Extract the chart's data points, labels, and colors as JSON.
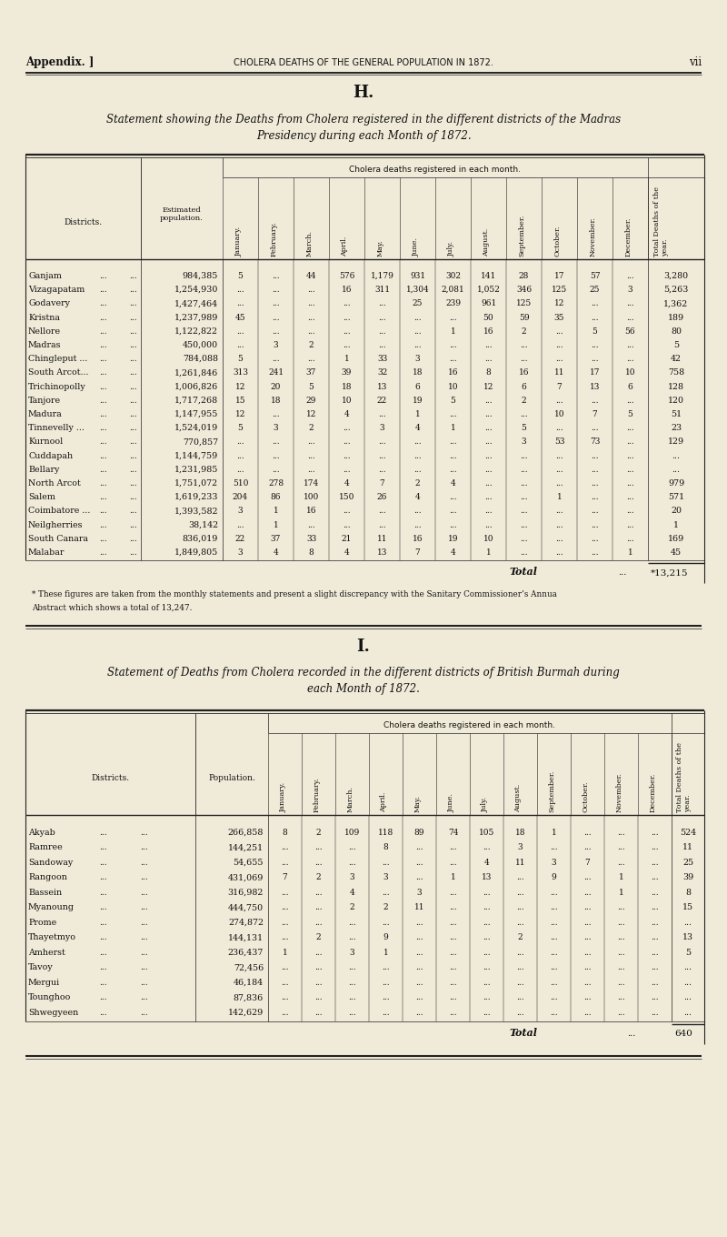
{
  "bg_color": "#f0ead8",
  "text_color": "#111111",
  "page_header_left": "Appendix. ]",
  "page_header_center": "CHOLERA DEATHS OF THE GENERAL POPULATION IN 1872.",
  "page_number": "vii",
  "section_h": "H.",
  "title_h_line1": "Statement showing the Deaths from Cholera registered in the different districts of the Madras",
  "title_h_line2": "Presidency during each Month of 1872.",
  "section_i": "I.",
  "title_i_line1": "Statement of Deaths from Cholera recorded in the different districts of British Burmah during",
  "title_i_line2": "each Month of 1872.",
  "footnote_line1": "* These figures are taken from the monthly statements and present a slight discrepancy with the Sanitary Commissioner’s Annua",
  "footnote_line2": "Abstract which shows a total of 13,247.",
  "table_h_col1_label": "Districts.",
  "table_h_col2_label": "Estimated\npopulation.",
  "table_h_subheader": "Cholera deaths registered in each month.",
  "table_h_months": [
    "January.",
    "February.",
    "March.",
    "April.",
    "May.",
    "June.",
    "July.",
    "August.",
    "September.",
    "October.",
    "November.",
    "December."
  ],
  "table_h_total_col": "Total Deaths of the\nyear.",
  "table_h_rows": [
    [
      "Ganjam",
      "...",
      "...",
      "984,385",
      "5",
      "...",
      "44",
      "576",
      "1,179",
      "931",
      "302",
      "141",
      "28",
      "17",
      "57",
      "...",
      "3,280"
    ],
    [
      "Vizagapatam",
      "...",
      "...",
      "1,254,930",
      "...",
      "...",
      "...",
      "16",
      "311",
      "1,304",
      "2,081",
      "1,052",
      "346",
      "125",
      "25",
      "3",
      "5,263"
    ],
    [
      "Godavery",
      "...",
      "...",
      "1,427,464",
      "...",
      "...",
      "...",
      "...",
      "...",
      "25",
      "239",
      "961",
      "125",
      "12",
      "...",
      "...",
      "1,362"
    ],
    [
      "Kristna",
      "...",
      "...",
      "1,237,989",
      "45",
      "...",
      "...",
      "...",
      "...",
      "...",
      "...",
      "50",
      "59",
      "35",
      "...",
      "...",
      "189"
    ],
    [
      "Nellore",
      "...",
      "...",
      "1,122,822",
      "...",
      "...",
      "...",
      "...",
      "...",
      "...",
      "1",
      "16",
      "2",
      "...",
      "5",
      "56",
      "80"
    ],
    [
      "Madras",
      "...",
      "...",
      "450,000",
      "...",
      "3",
      "2",
      "...",
      "...",
      "...",
      "...",
      "...",
      "...",
      "...",
      "...",
      "...",
      "5"
    ],
    [
      "Chingleput ...",
      "...",
      "...",
      "784,088",
      "5",
      "...",
      "...",
      "1",
      "33",
      "3",
      "...",
      "...",
      "...",
      "...",
      "...",
      "...",
      "42"
    ],
    [
      "South Arcot...",
      "...",
      "...",
      "1,261,846",
      "313",
      "241",
      "37",
      "39",
      "32",
      "18",
      "16",
      "8",
      "16",
      "11",
      "17",
      "10",
      "758"
    ],
    [
      "Trichinopolly",
      "...",
      "...",
      "1,006,826",
      "12",
      "20",
      "5",
      "18",
      "13",
      "6",
      "10",
      "12",
      "6",
      "7",
      "13",
      "6",
      "128"
    ],
    [
      "Tanjore",
      "...",
      "...",
      "1,717,268",
      "15",
      "18",
      "29",
      "10",
      "22",
      "19",
      "5",
      "...",
      "2",
      "...",
      "...",
      "...",
      "120"
    ],
    [
      "Madura",
      "...",
      "...",
      "1,147,955",
      "12",
      "...",
      "12",
      "4",
      "...",
      "1",
      "...",
      "...",
      "...",
      "10",
      "7",
      "5",
      "51"
    ],
    [
      "Tinnevelly ...",
      "...",
      "...",
      "1,524,019",
      "5",
      "3",
      "2",
      "...",
      "3",
      "4",
      "1",
      "...",
      "5",
      "...",
      "...",
      "...",
      "23"
    ],
    [
      "Kurnool",
      "...",
      "...",
      "770,857",
      "...",
      "...",
      "...",
      "...",
      "...",
      "...",
      "...",
      "...",
      "3",
      "53",
      "73",
      "...",
      "129"
    ],
    [
      "Cuddapah",
      "...",
      "...",
      "1,144,759",
      "...",
      "...",
      "...",
      "...",
      "...",
      "...",
      "...",
      "...",
      "...",
      "...",
      "...",
      "...",
      "..."
    ],
    [
      "Bellary",
      "...",
      "...",
      "1,231,985",
      "...",
      "...",
      "...",
      "...",
      "...",
      "...",
      "...",
      "...",
      "...",
      "...",
      "...",
      "...",
      "..."
    ],
    [
      "North Arcot",
      "...",
      "...",
      "1,751,072",
      "510",
      "278",
      "174",
      "4",
      "7",
      "2",
      "4",
      "...",
      "...",
      "...",
      "...",
      "...",
      "979"
    ],
    [
      "Salem",
      "...",
      "...",
      "1,619,233",
      "204",
      "86",
      "100",
      "150",
      "26",
      "4",
      "...",
      "...",
      "...",
      "1",
      "...",
      "...",
      "571"
    ],
    [
      "Coimbatore ...",
      "...",
      "...",
      "1,393,582",
      "3",
      "1",
      "16",
      "...",
      "...",
      "...",
      "...",
      "...",
      "...",
      "...",
      "...",
      "...",
      "20"
    ],
    [
      "Neilgherries",
      "...",
      "...",
      "38,142",
      "...",
      "1",
      "...",
      "...",
      "...",
      "...",
      "...",
      "...",
      "...",
      "...",
      "...",
      "...",
      "1"
    ],
    [
      "South Canara",
      "...",
      "...",
      "836,019",
      "22",
      "37",
      "33",
      "21",
      "11",
      "16",
      "19",
      "10",
      "...",
      "...",
      "...",
      "...",
      "169"
    ],
    [
      "Malabar",
      "...",
      "...",
      "1,849,805",
      "3",
      "4",
      "8",
      "4",
      "13",
      "7",
      "4",
      "1",
      "...",
      "...",
      "...",
      "1",
      "45"
    ]
  ],
  "table_h_total_label": "Total",
  "table_h_total_dots": "...",
  "table_h_total": "*13,215",
  "table_i_col1_label": "Districts.",
  "table_i_col2_label": "Population.",
  "table_i_subheader": "Cholera deaths registered in each month.",
  "table_i_months": [
    "January.",
    "February.",
    "March.",
    "April.",
    "May.",
    "June.",
    "July.",
    "August.",
    "September.",
    "October.",
    "November.",
    "December."
  ],
  "table_i_total_col": "Total Deaths of the\nyear.",
  "table_i_rows": [
    [
      "Akyab",
      "...",
      "...",
      "266,858",
      "8",
      "2",
      "109",
      "118",
      "89",
      "74",
      "105",
      "18",
      "1",
      "...",
      "...",
      "...",
      "524"
    ],
    [
      "Ramree",
      "...",
      "...",
      "144,251",
      "...",
      "...",
      "...",
      "8",
      "...",
      "...",
      "...",
      "3",
      "...",
      "...",
      "...",
      "...",
      "11"
    ],
    [
      "Sandoway",
      "...",
      "...",
      "54,655",
      "...",
      "...",
      "...",
      "...",
      "...",
      "...",
      "4",
      "11",
      "3",
      "7",
      "...",
      "...",
      "25"
    ],
    [
      "Rangoon",
      "...",
      "...",
      "431,069",
      "7",
      "2",
      "3",
      "3",
      "...",
      "1",
      "13",
      "...",
      "9",
      "...",
      "1",
      "...",
      "39"
    ],
    [
      "Bassein",
      "...",
      "...",
      "316,982",
      "...",
      "...",
      "4",
      "...",
      "3",
      "...",
      "...",
      "...",
      "...",
      "...",
      "1",
      "...",
      "8"
    ],
    [
      "Myanoung",
      "...",
      "...",
      "444,750",
      "...",
      "...",
      "2",
      "2",
      "11",
      "...",
      "...",
      "...",
      "...",
      "...",
      "...",
      "...",
      "15"
    ],
    [
      "Prome",
      "...",
      "...",
      "274,872",
      "...",
      "...",
      "...",
      "...",
      "...",
      "...",
      "...",
      "...",
      "...",
      "...",
      "...",
      "...",
      "..."
    ],
    [
      "Thayetmyo",
      "...",
      "...",
      "144,131",
      "...",
      "2",
      "...",
      "9",
      "...",
      "...",
      "...",
      "2",
      "...",
      "...",
      "...",
      "...",
      "13"
    ],
    [
      "Amherst",
      "...",
      "...",
      "236,437",
      "1",
      "...",
      "3",
      "1",
      "...",
      "...",
      "...",
      "...",
      "...",
      "...",
      "...",
      "...",
      "5"
    ],
    [
      "Tavoy",
      "...",
      "...",
      "72,456",
      "...",
      "...",
      "...",
      "...",
      "...",
      "...",
      "...",
      "...",
      "...",
      "...",
      "...",
      "...",
      "..."
    ],
    [
      "Mergui",
      "...",
      "...",
      "46,184",
      "...",
      "...",
      "...",
      "...",
      "...",
      "...",
      "...",
      "...",
      "...",
      "...",
      "...",
      "...",
      "..."
    ],
    [
      "Tounghoo",
      "...",
      "...",
      "87,836",
      "...",
      "...",
      "...",
      "...",
      "...",
      "...",
      "...",
      "...",
      "...",
      "...",
      "...",
      "...",
      "..."
    ],
    [
      "Shwegyeen",
      "...",
      "...",
      "142,629",
      "...",
      "...",
      "...",
      "...",
      "...",
      "...",
      "...",
      "...",
      "...",
      "...",
      "...",
      "...",
      "..."
    ]
  ],
  "table_i_total_label": "Total",
  "table_i_total_dots": "...",
  "table_i_total": "640"
}
